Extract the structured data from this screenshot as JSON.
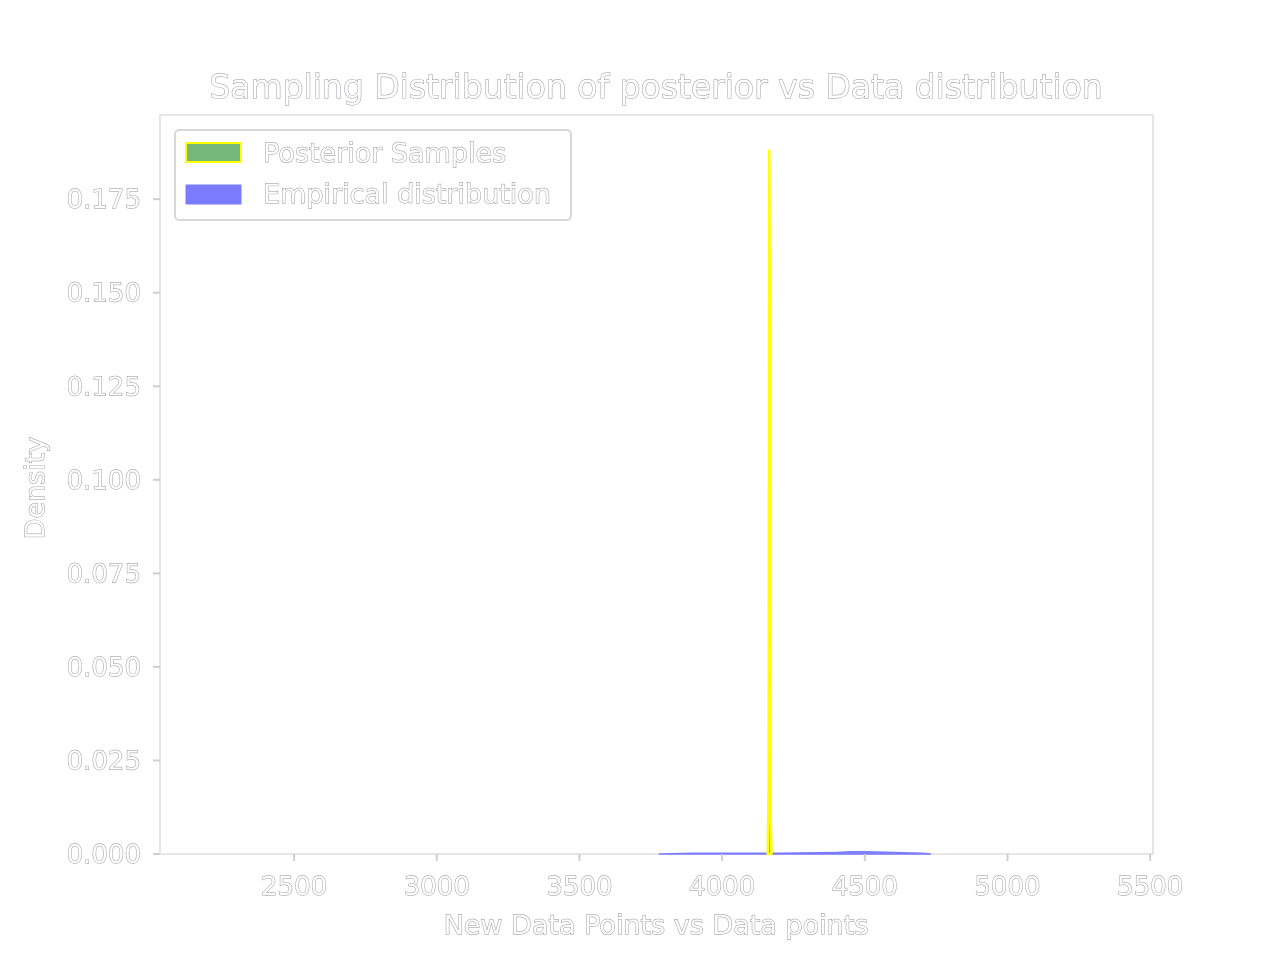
{
  "chart_data": {
    "type": "area",
    "title": "Sampling Distribution of posterior vs Data distribution",
    "xlabel": "New Data Points vs Data points",
    "ylabel": "Density",
    "xlim": [
      2030,
      5510
    ],
    "ylim": [
      0,
      0.1975
    ],
    "xticks": [
      2500,
      3000,
      3500,
      4000,
      4500,
      5000,
      5500
    ],
    "xtick_labels": [
      "2500",
      "3000",
      "3500",
      "4000",
      "4500",
      "5000",
      "5500"
    ],
    "yticks": [
      0.0,
      0.025,
      0.05,
      0.075,
      0.1,
      0.125,
      0.15,
      0.175
    ],
    "ytick_labels": [
      "0.000",
      "0.025",
      "0.050",
      "0.075",
      "0.100",
      "0.125",
      "0.150",
      "0.175"
    ],
    "grid": false,
    "legend_position": "top-left",
    "series": [
      {
        "name": "Posterior Samples",
        "fill_color": "#77b77a",
        "edge_color": "#ffff00",
        "x": [
          4160,
          4163,
          4164,
          4165,
          4166,
          4167,
          4168,
          4170,
          4173
        ],
        "y": [
          0.0,
          0.02,
          0.11,
          0.188,
          0.175,
          0.14,
          0.066,
          0.01,
          0.0
        ]
      },
      {
        "name": "Empirical distribution",
        "fill_color": "#7b7bff",
        "edge_color": "#7b7bff",
        "x": [
          3780,
          3900,
          4000,
          4100,
          4200,
          4300,
          4400,
          4450,
          4500,
          4600,
          4700,
          4730
        ],
        "y": [
          0.0,
          0.0002,
          0.0002,
          0.0002,
          0.0002,
          0.0003,
          0.0004,
          0.0006,
          0.0006,
          0.0004,
          0.0002,
          0.0
        ]
      }
    ]
  }
}
